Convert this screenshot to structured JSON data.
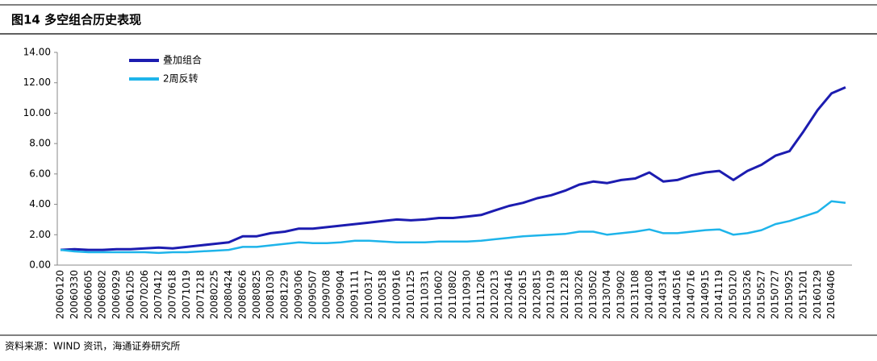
{
  "chart_data": {
    "type": "line",
    "title": "图14 多空组合历史表现",
    "source": "资料来源：WIND 资讯，海通证券研究所",
    "categories": [
      "20060120",
      "20060330",
      "20060605",
      "20060802",
      "20060929",
      "20061205",
      "20070206",
      "20070412",
      "20070618",
      "20071019",
      "20071218",
      "20080225",
      "20080424",
      "20080626",
      "20080825",
      "20081030",
      "20081229",
      "20090306",
      "20090507",
      "20090708",
      "20090904",
      "20091111",
      "20100317",
      "20100518",
      "20100916",
      "20101125",
      "20110331",
      "20110602",
      "20110802",
      "20110930",
      "20111206",
      "20120213",
      "20120416",
      "20120615",
      "20120815",
      "20121019",
      "20121218",
      "20130226",
      "20130502",
      "20130704",
      "20130902",
      "20131108",
      "20140108",
      "20140314",
      "20140516",
      "20140716",
      "20140915",
      "20141119",
      "20150120",
      "20150326",
      "20150527",
      "20150727",
      "20150925",
      "20151201",
      "20160129",
      "20160406",
      null
    ],
    "series": [
      {
        "name": "叠加组合",
        "color": "#1c1cb0",
        "values": [
          1.0,
          1.05,
          1.0,
          1.0,
          1.05,
          1.05,
          1.1,
          1.15,
          1.1,
          1.2,
          1.3,
          1.4,
          1.5,
          1.9,
          1.9,
          2.1,
          2.2,
          2.4,
          2.4,
          2.5,
          2.6,
          2.7,
          2.8,
          2.9,
          3.0,
          2.95,
          3.0,
          3.1,
          3.1,
          3.2,
          3.3,
          3.6,
          3.9,
          4.1,
          4.4,
          4.6,
          4.9,
          5.3,
          5.5,
          5.4,
          5.6,
          5.7,
          6.1,
          5.5,
          5.6,
          5.9,
          6.1,
          6.2,
          5.6,
          6.2,
          6.6,
          7.2,
          7.5,
          8.8,
          10.2,
          11.3,
          11.7
        ]
      },
      {
        "name": "2周反转",
        "color": "#1eb4ea",
        "values": [
          1.0,
          0.9,
          0.85,
          0.85,
          0.85,
          0.85,
          0.85,
          0.8,
          0.85,
          0.85,
          0.9,
          0.95,
          1.0,
          1.2,
          1.2,
          1.3,
          1.4,
          1.5,
          1.45,
          1.45,
          1.5,
          1.6,
          1.6,
          1.55,
          1.5,
          1.5,
          1.5,
          1.55,
          1.55,
          1.55,
          1.6,
          1.7,
          1.8,
          1.9,
          1.95,
          2.0,
          2.05,
          2.2,
          2.2,
          2.0,
          2.1,
          2.2,
          2.35,
          2.1,
          2.1,
          2.2,
          2.3,
          2.35,
          2.0,
          2.1,
          2.3,
          2.7,
          2.9,
          3.2,
          3.5,
          4.2,
          4.1
        ]
      }
    ],
    "ylim": [
      0,
      14
    ],
    "yticks": [
      {
        "value": 0,
        "label": "0.00"
      },
      {
        "value": 2,
        "label": "2.00"
      },
      {
        "value": 4,
        "label": "4.00"
      },
      {
        "value": 6,
        "label": "6.00"
      },
      {
        "value": 8,
        "label": "8.00"
      },
      {
        "value": 10,
        "label": "10.00"
      },
      {
        "value": 12,
        "label": "12.00"
      },
      {
        "value": 14,
        "label": "14.00"
      }
    ],
    "grid": false
  }
}
